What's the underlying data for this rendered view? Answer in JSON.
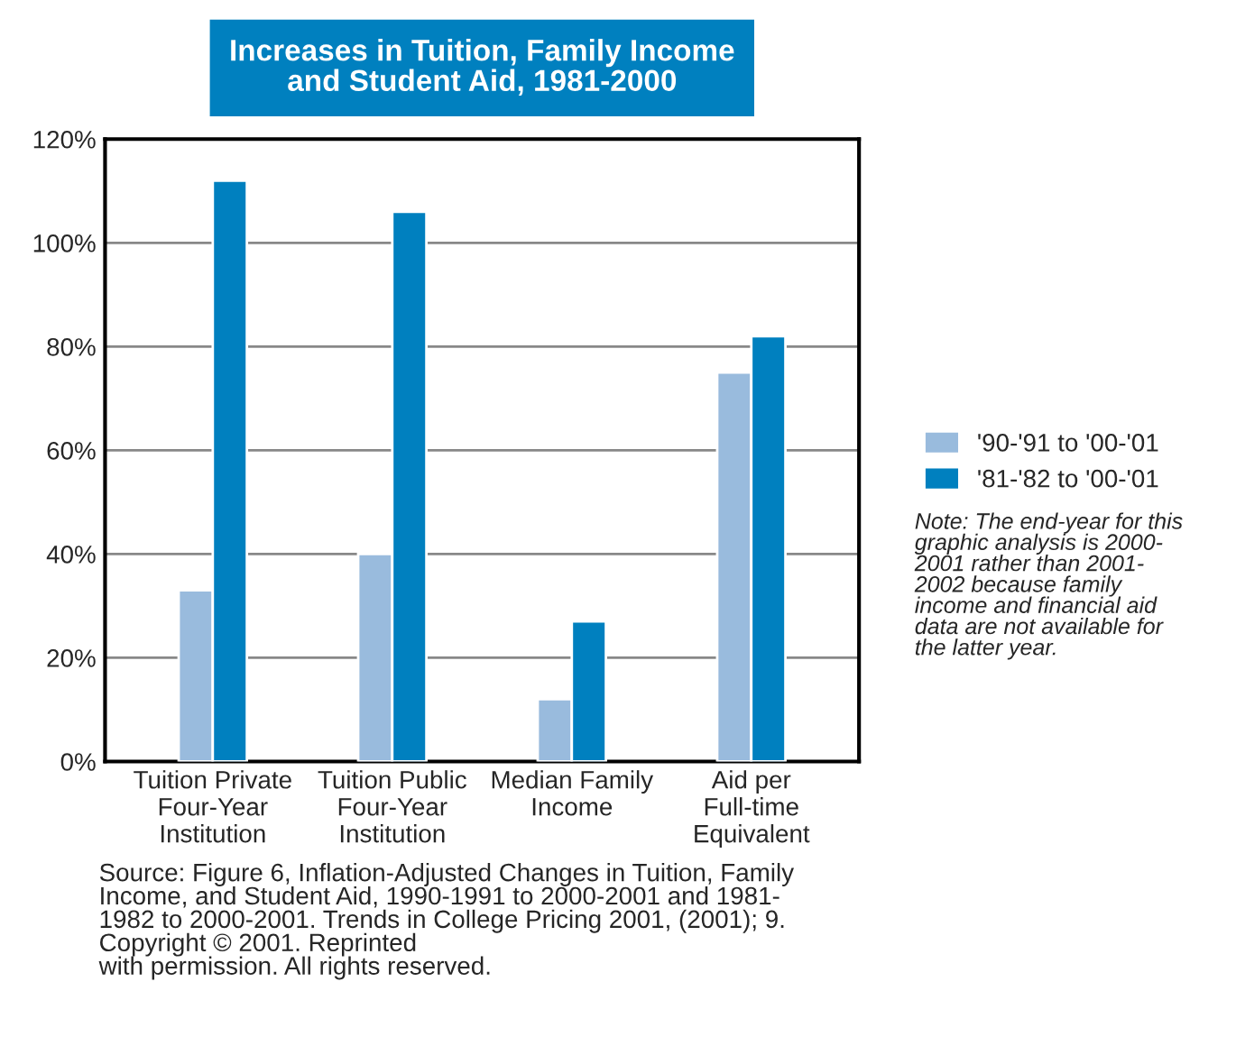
{
  "chart_data": {
    "type": "bar",
    "title": "Increases in Tuition, Family Income\nand Student Aid, 1981-2000",
    "categories": [
      "Tuition Private\nFour-Year\nInstitution",
      "Tuition Public\nFour-Year\nInstitution",
      "Median Family\nIncome",
      "Aid per\nFull-time\nEquivalent"
    ],
    "series": [
      {
        "name": "'90-'91 to '00-'01",
        "color": "#99bbdd",
        "values": [
          33,
          40,
          12,
          75
        ]
      },
      {
        "name": "'81-'82 to '00-'01",
        "color": "#0080bf",
        "values": [
          112,
          106,
          27,
          82
        ]
      }
    ],
    "ylim": [
      0,
      120
    ],
    "yticks": [
      {
        "value": 0,
        "label": "0%"
      },
      {
        "value": 20,
        "label": "20%"
      },
      {
        "value": 40,
        "label": "40%"
      },
      {
        "value": 60,
        "label": "60%"
      },
      {
        "value": 80,
        "label": "80%"
      },
      {
        "value": 100,
        "label": "100%"
      },
      {
        "value": 120,
        "label": "120%"
      }
    ],
    "grid": "y",
    "legend": "right",
    "annotations": [
      "Note: The end-year for this\ngraphic analysis is 2000-\n2001 rather than 2001-\n2002 because family\nincome and financial aid\ndata are not available for\nthe latter year.",
      "Source: Figure 6, Inflation-Adjusted Changes in Tuition, Family\nIncome, and Student Aid, 1990-1991 to 2000-2001 and 1981-\n1982 to 2000-2001. Trends in College Pricing 2001, (2001); 9.\nCopyright © 2001. Reprinted\nwith permission. All rights reserved."
    ]
  }
}
